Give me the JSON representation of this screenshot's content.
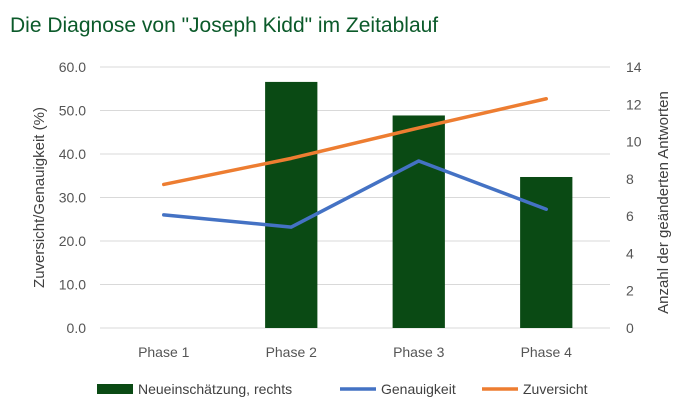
{
  "chart_data": {
    "type": "bar+line",
    "title": "Die Diagnose von \"Joseph Kidd\" im Zeitablauf",
    "categories": [
      "Phase 1",
      "Phase 2",
      "Phase 3",
      "Phase 4"
    ],
    "y_left": {
      "label": "Zuversicht/Genauigkeit (%)",
      "ylim": [
        0,
        60
      ],
      "ticks": [
        "0.0",
        "10.0",
        "20.0",
        "30.0",
        "40.0",
        "50.0",
        "60.0"
      ]
    },
    "y_right": {
      "label": "Anzahl der geänderten Antworten",
      "ylim": [
        0,
        14
      ],
      "ticks": [
        "0",
        "2",
        "4",
        "6",
        "8",
        "10",
        "12",
        "14"
      ]
    },
    "grid": true,
    "legend_position": "bottom",
    "series": [
      {
        "name": "Neueinschätzung, rechts",
        "kind": "bar",
        "axis": "right",
        "color": "#0a4a14",
        "values": [
          0,
          13.2,
          11.4,
          8.1
        ]
      },
      {
        "name": "Genauigkeit",
        "kind": "line",
        "axis": "left",
        "color": "#4472c4",
        "values": [
          26.0,
          23.2,
          38.4,
          27.3
        ]
      },
      {
        "name": "Zuversicht",
        "kind": "line",
        "axis": "left",
        "color": "#ed7d31",
        "values": [
          33.0,
          39.0,
          46.0,
          52.7
        ]
      }
    ]
  }
}
